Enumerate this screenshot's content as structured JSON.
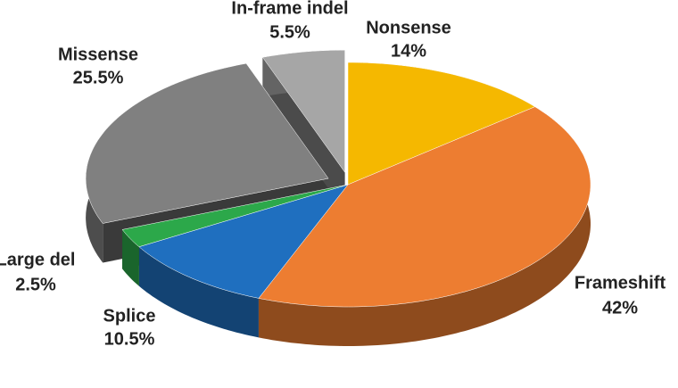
{
  "chart_data": {
    "type": "pie3d",
    "categories": [
      "Nonsense",
      "Frameshift",
      "Splice",
      "Large del",
      "Missense",
      "In-frame indel"
    ],
    "values": [
      14,
      42,
      10.5,
      2.5,
      25.5,
      5.5
    ],
    "value_labels": [
      "14%",
      "42%",
      "10.5%",
      "2.5%",
      "25.5%",
      "5.5%"
    ],
    "colors": [
      "#f5b800",
      "#ed7d31",
      "#1f6fbf",
      "#2ca84a",
      "#808080",
      "#a6a6a6"
    ]
  }
}
